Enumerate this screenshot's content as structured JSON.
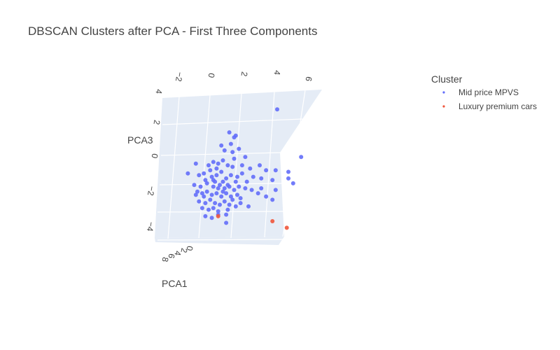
{
  "chart_data": {
    "type": "scatter",
    "title": "DBSCAN Clusters after PCA - First Three Components",
    "axes": {
      "x": {
        "title": "PCA1",
        "ticks": [
          "8",
          "6",
          "4",
          "2",
          "0"
        ]
      },
      "y": {
        "title": "",
        "ticks": [
          "−2",
          "0",
          "2",
          "4",
          "6"
        ]
      },
      "z": {
        "title": "PCA3",
        "ticks": [
          "4",
          "2",
          "0",
          "−2",
          "−4"
        ]
      }
    },
    "legend": {
      "title": "Cluster",
      "placement": "top-right",
      "entries": [
        {
          "name": "Mid price MPVS",
          "color": "#636efa"
        },
        {
          "name": "Luxury premium cars",
          "color": "#ef553b"
        }
      ]
    },
    "colors": {
      "pane": "#e5ecf6",
      "grid": "#ffffff",
      "text": "#444444"
    },
    "series": [
      {
        "name": "Mid price MPVS",
        "color": "#636efa",
        "points": [
          [
            4.3,
            2.8
          ],
          [
            1.3,
            1.4
          ],
          [
            1.7,
            1.2
          ],
          [
            1.6,
            1.1
          ],
          [
            1.4,
            0.7
          ],
          [
            1.9,
            0.4
          ],
          [
            0.8,
            0.6
          ],
          [
            1.5,
            0.2
          ],
          [
            1.6,
            -0.2
          ],
          [
            5.8,
            -0.1
          ],
          [
            -0.8,
            -0.5
          ],
          [
            0.0,
            -0.6
          ],
          [
            0.3,
            -0.4
          ],
          [
            0.6,
            -0.5
          ],
          [
            0.9,
            -0.3
          ],
          [
            1.2,
            -0.6
          ],
          [
            1.5,
            -0.7
          ],
          [
            2.1,
            -0.6
          ],
          [
            2.6,
            -0.8
          ],
          [
            3.2,
            -0.6
          ],
          [
            4.2,
            -0.9
          ],
          [
            5.0,
            -1.0
          ],
          [
            -1.3,
            -1.1
          ],
          [
            -0.6,
            -1.2
          ],
          [
            -0.3,
            -1.1
          ],
          [
            0.2,
            -1.3
          ],
          [
            0.5,
            -1.2
          ],
          [
            0.8,
            -1.0
          ],
          [
            1.1,
            -1.4
          ],
          [
            1.4,
            -1.2
          ],
          [
            1.8,
            -1.3
          ],
          [
            2.1,
            -1.1
          ],
          [
            2.8,
            -1.3
          ],
          [
            3.3,
            -1.4
          ],
          [
            4.0,
            -1.5
          ],
          [
            5.0,
            -1.4
          ],
          [
            5.3,
            -1.7
          ],
          [
            -0.9,
            -1.8
          ],
          [
            -0.5,
            -1.9
          ],
          [
            -0.1,
            -1.7
          ],
          [
            0.3,
            -1.9
          ],
          [
            0.7,
            -1.8
          ],
          [
            1.0,
            -2.0
          ],
          [
            1.3,
            -1.9
          ],
          [
            1.6,
            -2.1
          ],
          [
            1.9,
            -1.9
          ],
          [
            2.3,
            -2.0
          ],
          [
            2.7,
            -2.1
          ],
          [
            3.3,
            -2.0
          ],
          [
            4.2,
            -2.1
          ],
          [
            -0.7,
            -2.2
          ],
          [
            -0.4,
            -2.3
          ],
          [
            -0.1,
            -2.2
          ],
          [
            0.2,
            -2.4
          ],
          [
            0.5,
            -2.3
          ],
          [
            0.8,
            -2.5
          ],
          [
            1.1,
            -2.3
          ],
          [
            1.4,
            -2.5
          ],
          [
            1.8,
            -2.4
          ],
          [
            3.1,
            -2.3
          ],
          [
            3.6,
            -2.5
          ],
          [
            4.0,
            -2.7
          ],
          [
            -0.6,
            -2.8
          ],
          [
            -0.2,
            -2.9
          ],
          [
            0.1,
            -2.7
          ],
          [
            0.4,
            -2.9
          ],
          [
            0.7,
            -3.0
          ],
          [
            1.0,
            -2.8
          ],
          [
            1.3,
            -3.0
          ],
          [
            2.0,
            -2.9
          ],
          [
            2.5,
            -3.1
          ],
          [
            -0.4,
            -3.2
          ],
          [
            0.0,
            -3.3
          ],
          [
            0.3,
            -3.2
          ],
          [
            0.6,
            -3.4
          ],
          [
            1.2,
            -3.3
          ],
          [
            -0.2,
            -3.7
          ],
          [
            0.2,
            -3.8
          ],
          [
            0.6,
            -3.6
          ],
          [
            1.1,
            -4.1
          ],
          [
            0.3,
            -1.5
          ],
          [
            0.9,
            -1.6
          ],
          [
            1.7,
            -1.6
          ],
          [
            -0.2,
            -1.5
          ],
          [
            2.4,
            -1.6
          ],
          [
            0.6,
            -2.0
          ],
          [
            1.2,
            -1.8
          ],
          [
            -0.3,
            -2.5
          ],
          [
            1.5,
            -2.7
          ],
          [
            0.9,
            -2.2
          ],
          [
            0.1,
            -0.9
          ],
          [
            2.3,
            -0.1
          ],
          [
            3.6,
            -0.9
          ],
          [
            1.0,
            0.3
          ],
          [
            0.4,
            -1.6
          ],
          [
            2.0,
            -2.6
          ],
          [
            -0.8,
            -2.4
          ],
          [
            1.1,
            -3.6
          ],
          [
            0.5,
            -0.8
          ],
          [
            1.7,
            -3.1
          ]
        ]
      },
      {
        "name": "Luxury premium cars",
        "color": "#ef553b",
        "points": [
          [
            0.6,
            -3.7
          ],
          [
            4.0,
            -4.0
          ],
          [
            4.9,
            -4.4
          ]
        ]
      }
    ]
  }
}
